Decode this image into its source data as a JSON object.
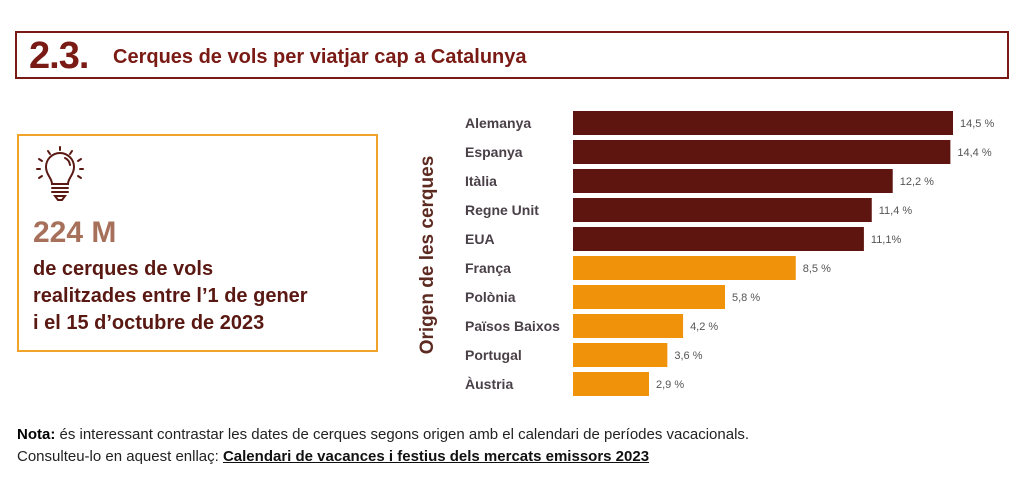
{
  "header": {
    "section_number": "2.3.",
    "title": "Cerques de vols per viatjar cap a Catalunya"
  },
  "info_box": {
    "icon": "lightbulb-icon",
    "value": "224 M",
    "lines": [
      "de cerques de vols",
      "realitzades entre l’1 de gener",
      "i el 15 d’octubre de 2023"
    ]
  },
  "colors": {
    "primary": "#5e1510",
    "secondary": "#f0930a",
    "header_border": "#7a1a14",
    "info_border": "#f0a42a"
  },
  "chart_data": {
    "type": "bar",
    "orientation": "horizontal",
    "title": "Cerques de vols per viatjar cap a Catalunya",
    "ylabel": "Origen de les cerques",
    "xlabel": "",
    "unit": "%",
    "categories": [
      "Alemanya",
      "Espanya",
      "Itàlia",
      "Regne Unit",
      "EUA",
      "França",
      "Polònia",
      "Països Baixos",
      "Portugal",
      "Àustria"
    ],
    "values": [
      14.5,
      14.4,
      12.2,
      11.4,
      11.1,
      8.5,
      5.8,
      4.2,
      3.6,
      2.9
    ],
    "value_labels": [
      "14,5 %",
      "14,4 %",
      "12,2 %",
      "11,4 %",
      "11,1%",
      "8,5 %",
      "5,8 %",
      "4,2 %",
      "3,6 %",
      "2,9 %"
    ],
    "groups": [
      "primary",
      "primary",
      "primary",
      "primary",
      "primary",
      "secondary",
      "secondary",
      "secondary",
      "secondary",
      "secondary"
    ],
    "xlim": [
      0,
      14.5
    ],
    "grid": false,
    "legend": "none"
  },
  "note": {
    "label": "Nota:",
    "text": " és interessant contrastar les dates de cerques segons origen amb el calendari de períodes vacacionals.",
    "link_prefix": "Consulteu-lo en aquest enllaç: ",
    "link_text": "Calendari de vacances i festius dels mercats emissors 2023"
  }
}
